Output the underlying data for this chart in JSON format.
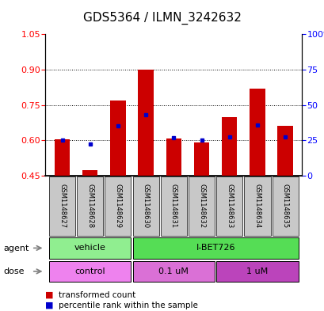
{
  "title": "GDS5364 / ILMN_3242632",
  "samples": [
    "GSM1148627",
    "GSM1148628",
    "GSM1148629",
    "GSM1148630",
    "GSM1148631",
    "GSM1148632",
    "GSM1148633",
    "GSM1148634",
    "GSM1148635"
  ],
  "red_values": [
    0.604,
    0.472,
    0.768,
    0.9,
    0.608,
    0.592,
    0.7,
    0.82,
    0.66
  ],
  "blue_values": [
    0.602,
    0.585,
    0.66,
    0.71,
    0.61,
    0.6,
    0.615,
    0.665,
    0.615
  ],
  "ylim_left": [
    0.45,
    1.05
  ],
  "ylim_right": [
    0,
    100
  ],
  "yticks_left": [
    0.45,
    0.6,
    0.75,
    0.9,
    1.05
  ],
  "yticks_right": [
    0,
    25,
    50,
    75,
    100
  ],
  "bar_bottom": 0.45,
  "agent_row": [
    {
      "label": "vehicle",
      "start": 0,
      "end": 3,
      "color": "#90EE90"
    },
    {
      "label": "I-BET726",
      "start": 3,
      "end": 9,
      "color": "#55DD55"
    }
  ],
  "dose_row": [
    {
      "label": "control",
      "start": 0,
      "end": 3,
      "color": "#EE82EE"
    },
    {
      "label": "0.1 uM",
      "start": 3,
      "end": 6,
      "color": "#DA70D6"
    },
    {
      "label": "1 uM",
      "start": 6,
      "end": 9,
      "color": "#BB44BB"
    }
  ],
  "legend_red_label": "transformed count",
  "legend_blue_label": "percentile rank within the sample",
  "bar_color": "#CC0000",
  "blue_color": "#0000CC",
  "sample_bg": "#C8C8C8",
  "title_fontsize": 11,
  "tick_fontsize": 8,
  "axis_label_fontsize": 8,
  "sample_fontsize": 6,
  "row_fontsize": 8,
  "legend_fontsize": 7.5
}
